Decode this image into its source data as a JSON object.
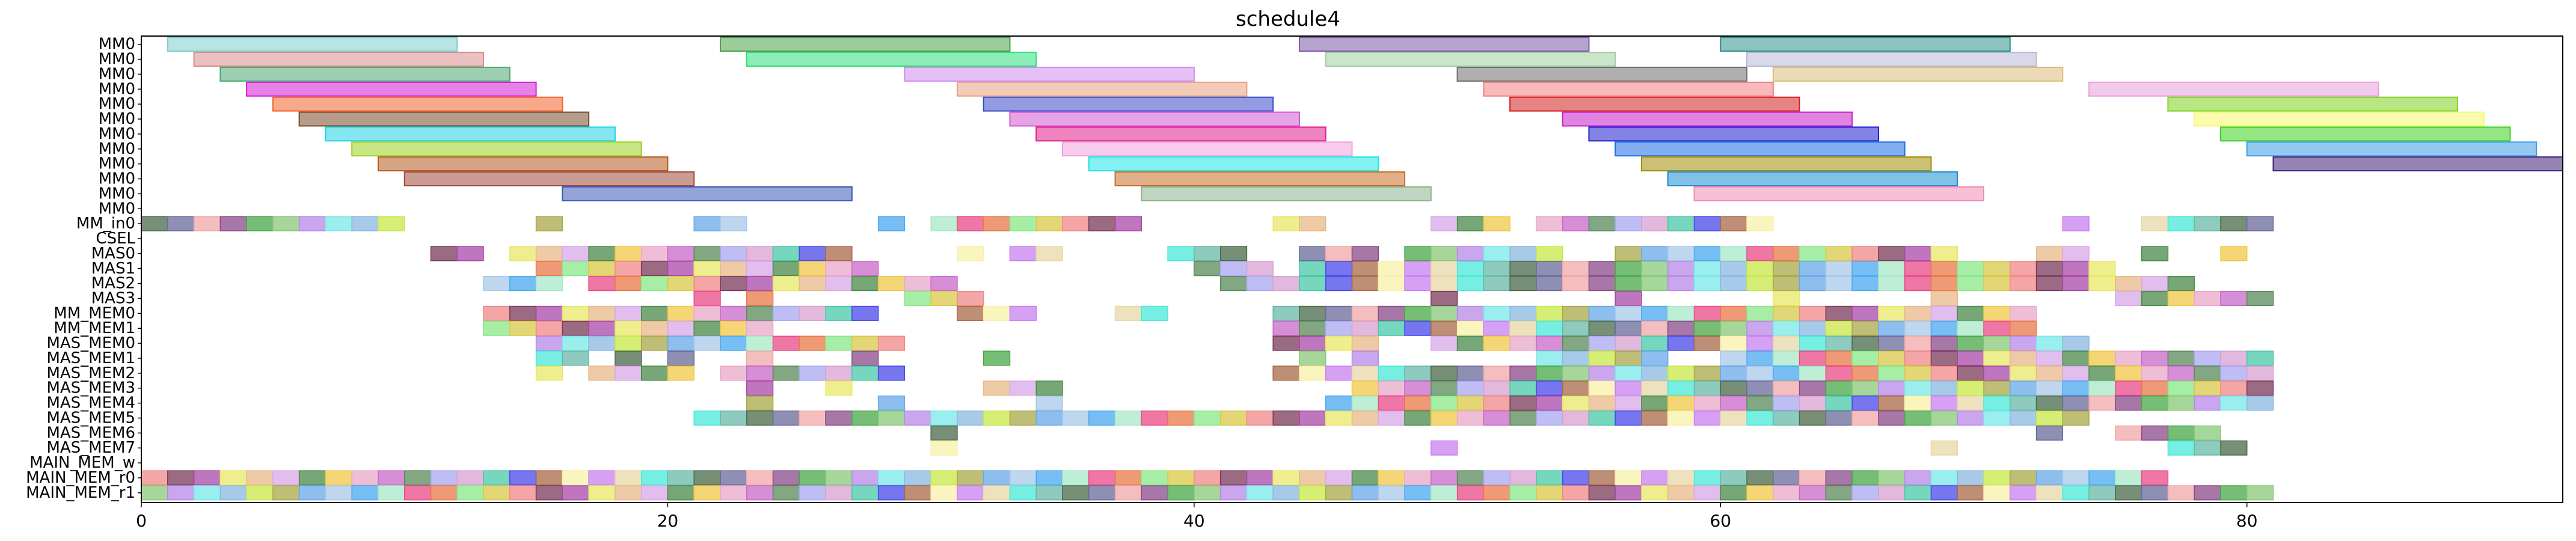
{
  "chart_data": {
    "type": "gantt",
    "title": "schedule4",
    "xlabel": "",
    "ylabel": "",
    "xlim": [
      0,
      92
    ],
    "xticks": [
      0,
      20,
      40,
      60,
      80
    ],
    "grid": false,
    "rows": [
      "MM0",
      "MM0",
      "MM0",
      "MM0",
      "MM0",
      "MM0",
      "MM0",
      "MM0",
      "MM0",
      "MM0",
      "MM0",
      "MM0",
      "MM_in0",
      "CSEL",
      "MAS0",
      "MAS1",
      "MAS2",
      "MAS3",
      "MM_MEM0",
      "MM_MEM1",
      "MAS_MEM0",
      "MAS_MEM1",
      "MAS_MEM2",
      "MAS_MEM3",
      "MAS_MEM4",
      "MAS_MEM5",
      "MAS_MEM6",
      "MAS_MEM7",
      "MAIN_MEM_w",
      "MAIN_MEM_r0",
      "MAIN_MEM_r1"
    ],
    "bars": [
      {
        "row": 0,
        "start": 1,
        "end": 12,
        "color": "#7fcdcd"
      },
      {
        "row": 0,
        "start": 22,
        "end": 33,
        "color": "#4aa04a"
      },
      {
        "row": 0,
        "start": 44,
        "end": 55,
        "color": "#7b5aa6"
      },
      {
        "row": 0,
        "start": 60,
        "end": 71,
        "color": "#2f8f8a"
      },
      {
        "row": 1,
        "start": 2,
        "end": 13,
        "color": "#d98c8c"
      },
      {
        "row": 1,
        "start": 23,
        "end": 34,
        "color": "#2ee07a"
      },
      {
        "row": 1,
        "start": 45,
        "end": 56,
        "color": "#9fcf9f"
      },
      {
        "row": 1,
        "start": 61,
        "end": 72,
        "color": "#b8b8d8"
      },
      {
        "row": 2,
        "start": 3,
        "end": 14,
        "color": "#4aa872"
      },
      {
        "row": 2,
        "start": 29,
        "end": 40,
        "color": "#d08cf0"
      },
      {
        "row": 2,
        "start": 50,
        "end": 61,
        "color": "#6e6e6e"
      },
      {
        "row": 2,
        "start": 62,
        "end": 73,
        "color": "#dcbc7a"
      },
      {
        "row": 3,
        "start": 4,
        "end": 15,
        "color": "#d41ad4"
      },
      {
        "row": 3,
        "start": 31,
        "end": 42,
        "color": "#e8a080"
      },
      {
        "row": 3,
        "start": 51,
        "end": 62,
        "color": "#f08080"
      },
      {
        "row": 3,
        "start": 74,
        "end": 85,
        "color": "#e8a0dc"
      },
      {
        "row": 4,
        "start": 5,
        "end": 16,
        "color": "#f2622a"
      },
      {
        "row": 4,
        "start": 32,
        "end": 43,
        "color": "#3a4ac8"
      },
      {
        "row": 4,
        "start": 52,
        "end": 63,
        "color": "#d21e1e"
      },
      {
        "row": 4,
        "start": 77,
        "end": 88,
        "color": "#7ed21e"
      },
      {
        "row": 5,
        "start": 6,
        "end": 17,
        "color": "#7a4a2a"
      },
      {
        "row": 5,
        "start": 33,
        "end": 44,
        "color": "#d25ad2"
      },
      {
        "row": 5,
        "start": 54,
        "end": 65,
        "color": "#c81ec8"
      },
      {
        "row": 5,
        "start": 78,
        "end": 89,
        "color": "#f8f870"
      },
      {
        "row": 6,
        "start": 7,
        "end": 18,
        "color": "#1ed2e6"
      },
      {
        "row": 6,
        "start": 34,
        "end": 45,
        "color": "#e01e8c"
      },
      {
        "row": 6,
        "start": 55,
        "end": 66,
        "color": "#1e1ed2"
      },
      {
        "row": 6,
        "start": 79,
        "end": 90,
        "color": "#3cd21e"
      },
      {
        "row": 7,
        "start": 8,
        "end": 19,
        "color": "#9ad21e"
      },
      {
        "row": 7,
        "start": 35,
        "end": 46,
        "color": "#f0a0dc"
      },
      {
        "row": 7,
        "start": 56,
        "end": 67,
        "color": "#1e6ee6"
      },
      {
        "row": 7,
        "start": 80,
        "end": 91,
        "color": "#3c9ce6"
      },
      {
        "row": 8,
        "start": 9,
        "end": 20,
        "color": "#b45a1e"
      },
      {
        "row": 8,
        "start": 36,
        "end": 47,
        "color": "#1ee6e6"
      },
      {
        "row": 8,
        "start": 57,
        "end": 68,
        "color": "#a08c00"
      },
      {
        "row": 8,
        "start": 81,
        "end": 92,
        "color": "#3c1e78"
      },
      {
        "row": 9,
        "start": 10,
        "end": 21,
        "color": "#a04a3c"
      },
      {
        "row": 9,
        "start": 37,
        "end": 48,
        "color": "#c86e28"
      },
      {
        "row": 9,
        "start": 58,
        "end": 69,
        "color": "#1e8cd2"
      },
      {
        "row": 10,
        "start": 16,
        "end": 27,
        "color": "#3c5ab4"
      },
      {
        "row": 10,
        "start": 38,
        "end": 49,
        "color": "#8cb48c"
      },
      {
        "row": 10,
        "start": 59,
        "end": 70,
        "color": "#f08cb4"
      }
    ],
    "blocks": [
      {
        "row": 12,
        "starts": [
          0,
          1,
          2,
          3,
          4,
          5,
          6,
          7,
          8,
          9,
          15,
          21,
          22,
          28,
          30,
          31,
          32,
          33,
          34,
          35,
          36,
          37,
          43,
          44,
          49,
          50,
          51,
          53,
          54,
          55,
          56,
          57,
          58,
          59,
          60,
          61,
          73,
          76,
          77,
          78,
          79,
          80
        ],
        "width": 1
      },
      {
        "row": 14,
        "starts": [
          11,
          12,
          14,
          15,
          16,
          17,
          18,
          19,
          20,
          21,
          22,
          23,
          24,
          25,
          26,
          31,
          33,
          34,
          39,
          40,
          41,
          44,
          45,
          46,
          48,
          49,
          50,
          51,
          52,
          53,
          56,
          57,
          58,
          59,
          60,
          61,
          62,
          63,
          64,
          65,
          66,
          67,
          68,
          72,
          73,
          76,
          79
        ],
        "width": 1
      },
      {
        "row": 15,
        "starts": [
          15,
          16,
          17,
          18,
          19,
          20,
          21,
          22,
          23,
          24,
          25,
          26,
          27,
          40,
          41,
          42,
          44,
          45,
          46,
          47,
          48,
          49,
          50,
          51,
          52,
          53,
          54,
          55,
          56,
          57,
          58,
          59,
          60,
          61,
          62,
          63,
          64,
          65,
          66,
          67,
          68,
          69,
          70,
          71,
          72,
          73,
          74
        ],
        "width": 1
      },
      {
        "row": 16,
        "starts": [
          13,
          14,
          15,
          17,
          18,
          19,
          20,
          21,
          22,
          23,
          24,
          25,
          26,
          27,
          28,
          29,
          30,
          41,
          42,
          43,
          44,
          45,
          46,
          47,
          48,
          49,
          50,
          51,
          52,
          53,
          54,
          55,
          56,
          57,
          58,
          59,
          60,
          61,
          62,
          63,
          64,
          65,
          66,
          67,
          68,
          69,
          70,
          71,
          72,
          73,
          74,
          75,
          76,
          77
        ],
        "width": 1
      },
      {
        "row": 17,
        "starts": [
          21,
          23,
          29,
          30,
          31,
          49,
          56,
          62,
          68,
          75,
          76,
          77,
          78,
          79,
          80
        ],
        "width": 1
      },
      {
        "row": 18,
        "starts": [
          13,
          14,
          15,
          16,
          17,
          18,
          19,
          20,
          21,
          22,
          23,
          24,
          25,
          26,
          27,
          31,
          32,
          33,
          37,
          38,
          43,
          44,
          45,
          46,
          47,
          48,
          49,
          50,
          51,
          52,
          53,
          54,
          55,
          56,
          57,
          58,
          59,
          60,
          61,
          62,
          63,
          64,
          65,
          66,
          67,
          68,
          69,
          70,
          71
        ],
        "width": 1
      },
      {
        "row": 19,
        "starts": [
          13,
          14,
          15,
          16,
          17,
          18,
          19,
          20,
          21,
          22,
          23,
          43,
          44,
          45,
          46,
          47,
          48,
          49,
          50,
          51,
          52,
          53,
          54,
          55,
          56,
          57,
          58,
          59,
          60,
          61,
          62,
          63,
          64,
          65,
          66,
          67,
          68,
          69,
          70,
          71
        ],
        "width": 1
      },
      {
        "row": 20,
        "starts": [
          15,
          16,
          17,
          18,
          19,
          20,
          21,
          22,
          23,
          24,
          25,
          26,
          27,
          28,
          43,
          44,
          45,
          46,
          49,
          50,
          51,
          52,
          53,
          54,
          55,
          56,
          57,
          58,
          59,
          60,
          61,
          62,
          63,
          64,
          65,
          66,
          67,
          68,
          69,
          70,
          71,
          72,
          73
        ],
        "width": 1
      },
      {
        "row": 21,
        "starts": [
          15,
          16,
          18,
          20,
          23,
          27,
          32,
          44,
          46,
          53,
          54,
          55,
          56,
          57,
          60,
          61,
          62,
          63,
          64,
          65,
          66,
          67,
          68,
          69,
          70,
          71,
          72,
          73,
          74,
          75,
          76,
          77,
          78,
          79,
          80
        ],
        "width": 1
      },
      {
        "row": 22,
        "starts": [
          15,
          17,
          18,
          19,
          20,
          22,
          23,
          24,
          25,
          26,
          27,
          28,
          43,
          44,
          45,
          46,
          47,
          48,
          49,
          50,
          51,
          52,
          53,
          54,
          55,
          56,
          57,
          58,
          59,
          60,
          61,
          62,
          63,
          64,
          65,
          66,
          67,
          68,
          69,
          70,
          71,
          72,
          73,
          74,
          75,
          76,
          77,
          78,
          79,
          80
        ],
        "width": 1
      },
      {
        "row": 23,
        "starts": [
          23,
          26,
          32,
          33,
          34,
          46,
          47,
          48,
          49,
          50,
          51,
          52,
          53,
          54,
          55,
          56,
          57,
          58,
          59,
          60,
          61,
          62,
          63,
          64,
          65,
          66,
          67,
          68,
          69,
          70,
          71,
          72,
          73,
          74,
          75,
          76,
          77,
          78,
          79,
          80
        ],
        "width": 1
      },
      {
        "row": 24,
        "starts": [
          23,
          28,
          34,
          45,
          46,
          47,
          48,
          49,
          50,
          51,
          52,
          53,
          54,
          55,
          56,
          57,
          58,
          59,
          60,
          61,
          62,
          63,
          64,
          65,
          66,
          67,
          68,
          69,
          70,
          71,
          72,
          73,
          74,
          75,
          76,
          77,
          78,
          79,
          80
        ],
        "width": 1
      },
      {
        "row": 25,
        "starts": [
          21,
          22,
          23,
          24,
          25,
          26,
          27,
          28,
          29,
          30,
          31,
          32,
          33,
          34,
          35,
          36,
          37,
          38,
          39,
          40,
          41,
          42,
          43,
          44,
          45,
          46,
          47,
          48,
          49,
          50,
          51,
          52,
          53,
          54,
          55,
          56,
          57,
          58,
          59,
          60,
          61,
          62,
          63,
          64,
          65,
          66,
          67,
          68,
          69,
          70,
          71,
          72,
          73
        ],
        "width": 1
      },
      {
        "row": 26,
        "starts": [
          30,
          72,
          75,
          76,
          77,
          78
        ],
        "width": 1
      },
      {
        "row": 27,
        "starts": [
          30,
          49,
          68,
          77,
          78,
          79
        ],
        "width": 1
      },
      {
        "row": 29,
        "starts": [
          0,
          1,
          2,
          3,
          4,
          5,
          6,
          7,
          8,
          9,
          10,
          11,
          12,
          13,
          14,
          15,
          16,
          17,
          18,
          19,
          20,
          21,
          22,
          23,
          24,
          25,
          26,
          27,
          28,
          29,
          30,
          31,
          32,
          33,
          34,
          35,
          36,
          37,
          38,
          39,
          40,
          41,
          42,
          43,
          44,
          45,
          46,
          47,
          48,
          49,
          50,
          51,
          52,
          53,
          54,
          55,
          56,
          57,
          58,
          59,
          60,
          61,
          62,
          63,
          64,
          65,
          66,
          67,
          68,
          69,
          70,
          71,
          72,
          73,
          74,
          75,
          76
        ],
        "width": 1
      },
      {
        "row": 30,
        "starts": [
          0,
          1,
          2,
          3,
          4,
          5,
          6,
          7,
          8,
          9,
          10,
          11,
          12,
          13,
          14,
          15,
          16,
          17,
          18,
          19,
          20,
          21,
          22,
          23,
          24,
          25,
          26,
          27,
          28,
          29,
          30,
          31,
          32,
          33,
          34,
          35,
          36,
          37,
          38,
          39,
          40,
          41,
          42,
          43,
          44,
          45,
          46,
          47,
          48,
          49,
          50,
          51,
          52,
          53,
          54,
          55,
          56,
          57,
          58,
          59,
          60,
          61,
          62,
          63,
          64,
          65,
          66,
          67,
          68,
          69,
          70,
          71,
          72,
          73,
          74,
          75,
          76,
          77,
          78,
          79,
          80
        ],
        "width": 1
      }
    ],
    "palette": [
      "#a8c8e8",
      "#f8f0a8",
      "#d8c848",
      "#6a6a9a",
      "#d8a8e8",
      "#7ae8e8",
      "#a8a8f0",
      "#4aa8f0",
      "#c880f0",
      "#f08888",
      "#f0a8a8",
      "#4a8a4a",
      "#8ab8e0",
      "#d8a0d0",
      "#a8e8c8",
      "#e8d8a8",
      "#7a3a5a",
      "#8a4a8a",
      "#f0c848",
      "#c8e848",
      "#48c8a8",
      "#e84a88",
      "#4ae8d8",
      "#a848a8",
      "#48a848",
      "#e8a8c8",
      "#a8a848",
      "#4848e8",
      "#e87848",
      "#68b8a8",
      "#e8e868",
      "#88c878",
      "#c868c8",
      "#68a8e8",
      "#a8684a",
      "#88e888",
      "#4a6a4a",
      "#e8b888",
      "#b888e8",
      "#5a8a5a"
    ]
  }
}
